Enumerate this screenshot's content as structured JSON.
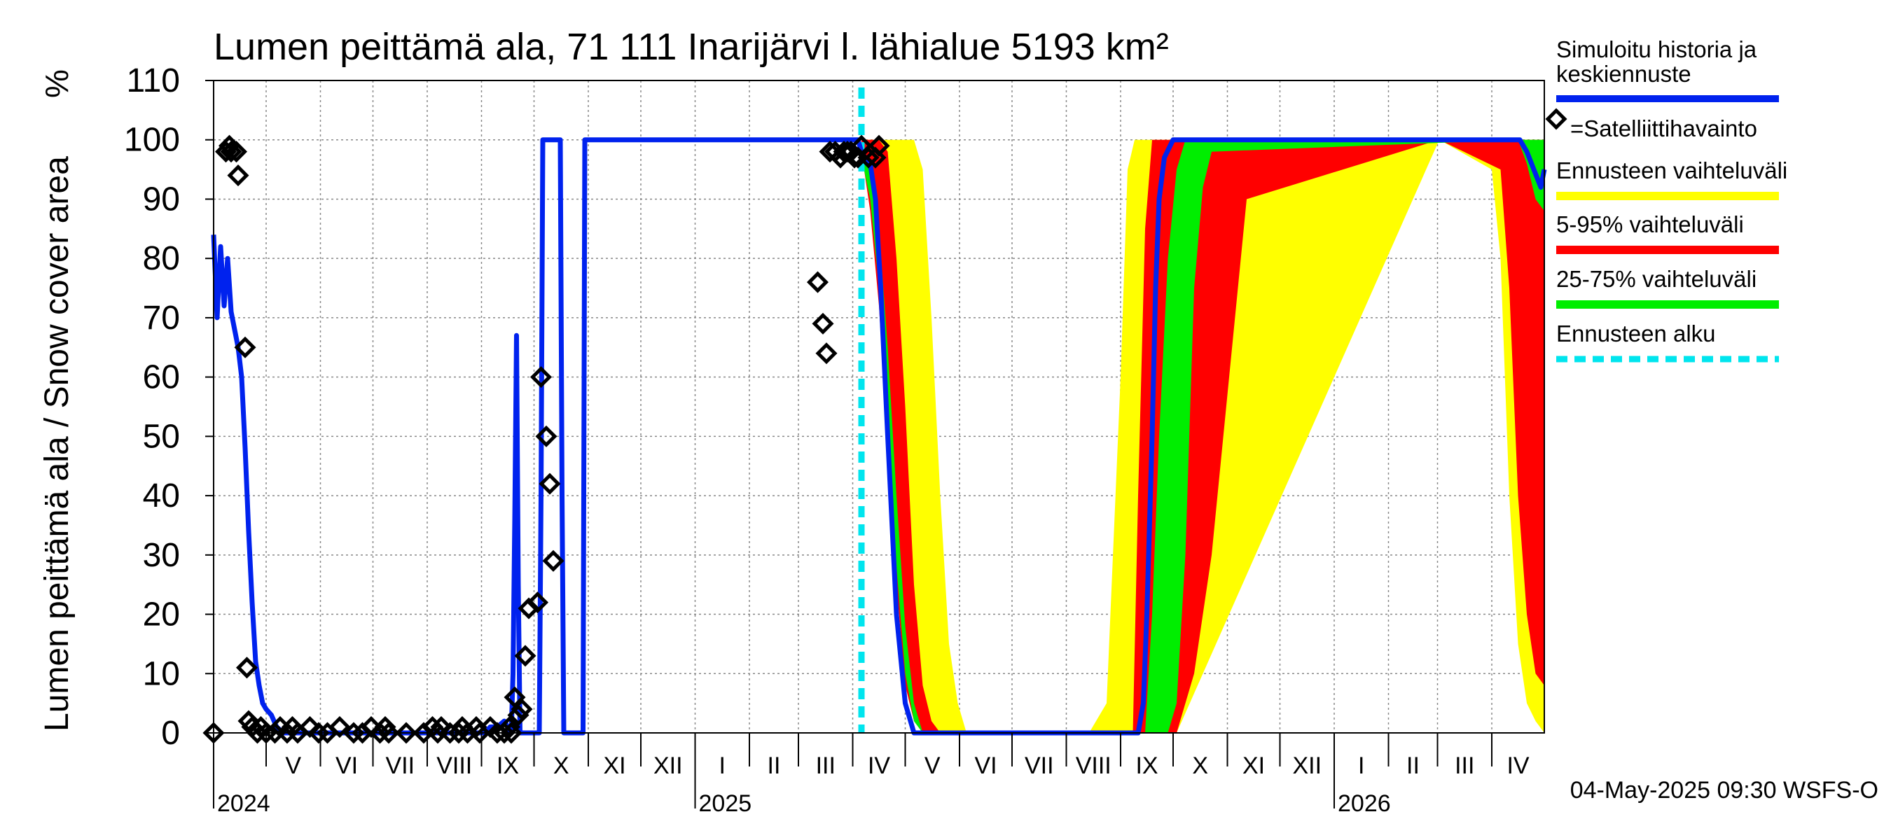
{
  "chart_data": {
    "type": "area",
    "title": "Lumen peittämä ala, 71 111 Inarijärvi l. lähialue 5193 km²",
    "ylabel": "Lumen peittämä ala / Snow cover area",
    "yunit": "%",
    "ylim": [
      0,
      110
    ],
    "yticks": [
      0,
      10,
      20,
      30,
      40,
      50,
      60,
      70,
      80,
      90,
      100,
      110
    ],
    "x_unit": "days since 2024-04-01",
    "xlim": [
      0,
      760
    ],
    "months": [
      {
        "label": "V",
        "start": 30
      },
      {
        "label": "VI",
        "start": 61
      },
      {
        "label": "VII",
        "start": 91
      },
      {
        "label": "VIII",
        "start": 122
      },
      {
        "label": "IX",
        "start": 153
      },
      {
        "label": "X",
        "start": 183
      },
      {
        "label": "XI",
        "start": 214
      },
      {
        "label": "XII",
        "start": 244
      },
      {
        "label": "I",
        "start": 275
      },
      {
        "label": "II",
        "start": 306
      },
      {
        "label": "III",
        "start": 334
      },
      {
        "label": "IV",
        "start": 365
      },
      {
        "label": "V",
        "start": 395
      },
      {
        "label": "VI",
        "start": 426
      },
      {
        "label": "VII",
        "start": 456
      },
      {
        "label": "VIII",
        "start": 487
      },
      {
        "label": "IX",
        "start": 518
      },
      {
        "label": "X",
        "start": 548
      },
      {
        "label": "XI",
        "start": 579
      },
      {
        "label": "XII",
        "start": 609
      },
      {
        "label": "I",
        "start": 640
      },
      {
        "label": "II",
        "start": 671
      },
      {
        "label": "III",
        "start": 699
      },
      {
        "label": "IV",
        "start": 730
      }
    ],
    "year_marks": [
      {
        "label": "2024",
        "day": 0
      },
      {
        "label": "2025",
        "day": 275
      },
      {
        "label": "2026",
        "day": 640
      }
    ],
    "forecast_start": 370,
    "series": [
      {
        "name": "Simuloitu historia ja keskiennuste",
        "color": "#0022ee",
        "x": [
          0,
          2,
          4,
          6,
          8,
          10,
          12,
          14,
          16,
          18,
          20,
          22,
          24,
          26,
          28,
          30,
          33,
          36,
          40,
          50,
          100,
          150,
          155,
          158,
          162,
          166,
          170,
          171,
          172,
          173,
          174,
          175,
          176,
          180,
          186,
          187,
          188,
          189,
          190,
          198,
          199,
          200,
          210,
          211,
          212,
          218,
          219,
          220,
          300,
          320,
          340,
          360,
          365,
          368,
          370,
          372,
          375,
          378,
          381,
          385,
          390,
          395,
          400,
          405,
          410,
          500,
          520,
          525,
          528,
          531,
          533,
          536,
          538,
          540,
          543,
          548,
          556,
          570,
          600,
          700,
          740,
          746,
          750,
          754,
          758,
          760
        ],
        "values": [
          84,
          70,
          82,
          72,
          80,
          71,
          68,
          65,
          60,
          48,
          34,
          22,
          12,
          8,
          5,
          4,
          3,
          1,
          0,
          0,
          0,
          0,
          0,
          1,
          1,
          2,
          0,
          10,
          36,
          67,
          25,
          0,
          0,
          0,
          0,
          40,
          100,
          100,
          100,
          100,
          40,
          0,
          0,
          0,
          100,
          100,
          100,
          100,
          100,
          100,
          100,
          100,
          100,
          100,
          98,
          97,
          96,
          90,
          75,
          50,
          20,
          5,
          0,
          0,
          0,
          0,
          0,
          0,
          0,
          5,
          20,
          50,
          75,
          90,
          97,
          100,
          100,
          100,
          100,
          100,
          100,
          100,
          98,
          95,
          92,
          95
        ]
      },
      {
        "name": "Ennusteen vaihteluväli",
        "color": "#ffff00",
        "x": [
          370,
          380,
          385,
          390,
          395,
          400,
          405,
          410,
          415,
          420,
          425,
          430,
          500,
          510,
          518,
          522,
          526,
          530,
          534,
          538,
          542,
          546,
          550,
          700,
          730,
          735,
          740,
          745,
          750,
          755,
          760
        ],
        "lower": [
          100,
          88,
          70,
          45,
          20,
          5,
          0,
          0,
          0,
          0,
          0,
          0,
          0,
          0,
          0,
          0,
          0,
          0,
          0,
          0,
          0,
          0,
          0,
          100,
          95,
          80,
          40,
          15,
          5,
          2,
          0
        ],
        "upper": [
          100,
          100,
          100,
          100,
          100,
          100,
          95,
          70,
          40,
          15,
          5,
          0,
          0,
          5,
          60,
          95,
          100,
          100,
          100,
          100,
          100,
          100,
          100,
          100,
          100,
          100,
          100,
          100,
          100,
          100,
          100
        ]
      },
      {
        "name": "5-95% vaihteluväli",
        "color": "#ff0000",
        "x": [
          370,
          375,
          380,
          385,
          390,
          395,
          400,
          405,
          410,
          415,
          525,
          528,
          532,
          536,
          540,
          545,
          550,
          560,
          570,
          580,
          590,
          700,
          735,
          740,
          745,
          750,
          755,
          760
        ],
        "lower": [
          98,
          88,
          72,
          48,
          25,
          8,
          2,
          0,
          0,
          0,
          0,
          0,
          0,
          0,
          0,
          0,
          0,
          10,
          30,
          60,
          90,
          100,
          95,
          75,
          40,
          20,
          10,
          8
        ],
        "upper": [
          100,
          100,
          100,
          98,
          80,
          55,
          25,
          8,
          2,
          0,
          0,
          40,
          85,
          100,
          100,
          100,
          100,
          100,
          100,
          100,
          100,
          100,
          100,
          100,
          100,
          100,
          100,
          100
        ]
      },
      {
        "name": "25-75% vaihteluväli",
        "color": "#00ee00",
        "x": [
          370,
          375,
          380,
          385,
          390,
          395,
          400,
          405,
          532,
          536,
          540,
          545,
          550,
          555,
          560,
          565,
          570,
          745,
          750,
          755,
          760
        ],
        "lower": [
          97,
          90,
          75,
          52,
          28,
          10,
          2,
          0,
          0,
          0,
          0,
          0,
          5,
          30,
          75,
          92,
          98,
          100,
          96,
          90,
          88
        ],
        "upper": [
          99,
          96,
          85,
          65,
          40,
          18,
          5,
          0,
          0,
          20,
          50,
          80,
          95,
          100,
          100,
          100,
          100,
          100,
          100,
          100,
          100
        ]
      }
    ],
    "satellite": {
      "name": "Satelliittihavainto",
      "x": [
        0,
        7,
        9,
        10,
        13,
        14,
        18,
        19,
        20,
        22,
        25,
        27,
        30,
        35,
        38,
        42,
        45,
        48,
        55,
        60,
        65,
        72,
        80,
        85,
        90,
        95,
        98,
        100,
        110,
        120,
        125,
        128,
        130,
        135,
        140,
        142,
        145,
        150,
        152,
        158,
        162,
        166,
        169,
        170,
        172,
        174,
        176,
        178,
        180,
        185,
        187,
        190,
        192,
        194,
        345,
        348,
        350,
        352,
        355,
        358,
        360,
        362,
        364,
        366,
        368,
        370,
        374,
        378,
        380
      ],
      "values": [
        0,
        98,
        99,
        98,
        98,
        94,
        65,
        11,
        2,
        1,
        0,
        1,
        0,
        0,
        1,
        0,
        1,
        0,
        1,
        0,
        0,
        1,
        0,
        0,
        1,
        0,
        1,
        0,
        0,
        0,
        1,
        0,
        1,
        0,
        0,
        1,
        0,
        1,
        0,
        1,
        0,
        0,
        1,
        0,
        6,
        3,
        4,
        13,
        21,
        22,
        60,
        50,
        42,
        29,
        76,
        69,
        64,
        98,
        98,
        97,
        98,
        98,
        98,
        97,
        97,
        99,
        97,
        97,
        99
      ]
    },
    "legend": [
      {
        "label": "Simuloitu historia ja keskiennuste",
        "color": "#0022ee",
        "style": "line"
      },
      {
        "label": "=Satelliittihavainto",
        "color": "#000000",
        "style": "diamond"
      },
      {
        "label": "Ennusteen vaihteluväli",
        "color": "#ffff00",
        "style": "line"
      },
      {
        "label": "5-95% vaihteluväli",
        "color": "#ff0000",
        "style": "line"
      },
      {
        "label": "25-75% vaihteluväli",
        "color": "#00ee00",
        "style": "line"
      },
      {
        "label": "Ennusteen alku",
        "color": "#00e5ee",
        "style": "dashed"
      }
    ],
    "footer": "04-May-2025 09:30 WSFS-O",
    "grid": true
  }
}
